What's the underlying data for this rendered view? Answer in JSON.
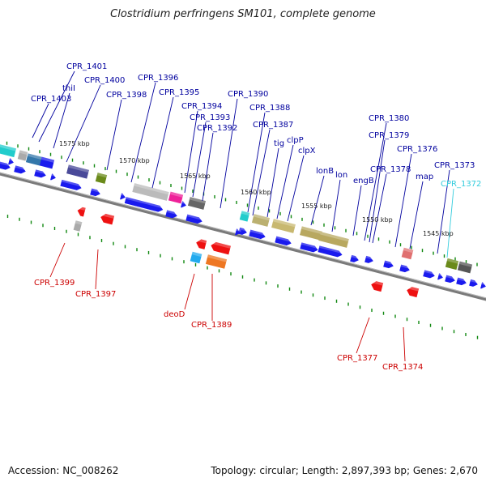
{
  "title": "Clostridium perfringens SM101, complete genome",
  "accession": "Accession: NC_008262",
  "summary": "Topology: circular; Length: 2,897,393 bp; Genes: 2,670",
  "colors": {
    "plus_label": "#00009e",
    "minus_label": "#cc0000",
    "highlight_label": "#33ccdd",
    "backbone": "#777777",
    "tick": "#118811",
    "cds_forward": "#1a1aee",
    "cds_reverse": "#ee1111"
  },
  "scale_labels": [
    "1575 kbp",
    "1570 kbp",
    "1565 kbp",
    "1560 kbp",
    "1555 kbp",
    "1550 kbp",
    "1545 kbp"
  ],
  "plus_labels": [
    "CPR_1401",
    "thiI",
    "CPR_1400",
    "CPR_1403",
    "CPR_1398",
    "CPR_1396",
    "CPR_1395",
    "CPR_1394",
    "CPR_1393",
    "CPR_1392",
    "CPR_1390",
    "CPR_1388",
    "CPR_1387",
    "tig",
    "clpP",
    "clpX",
    "lonB",
    "lon",
    "engB",
    "CPR_1380",
    "CPR_1379",
    "CPR_1378",
    "CPR_1376",
    "map",
    "CPR_1373",
    "CPR_1372"
  ],
  "minus_labels": [
    "CPR_1399",
    "CPR_1397",
    "deoD",
    "CPR_1389",
    "CPR_1377",
    "CPR_1374"
  ]
}
